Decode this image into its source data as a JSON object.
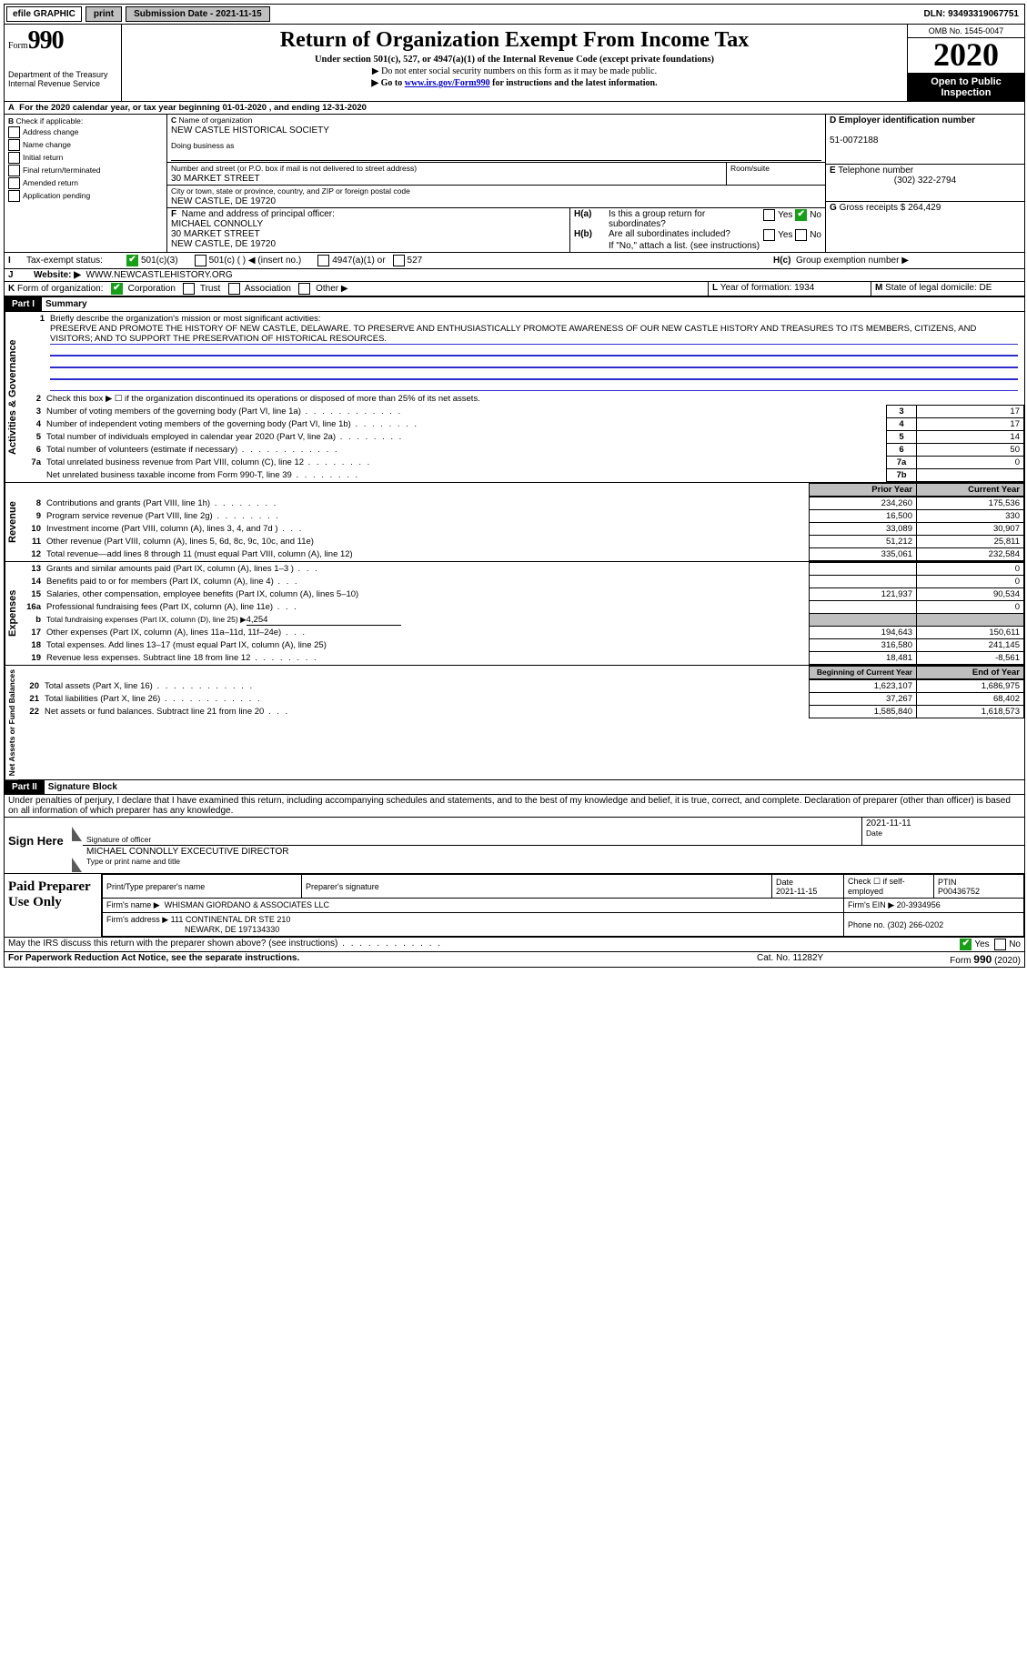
{
  "colors": {
    "blue": "#2d2dcc",
    "grey": "#bfbfbf",
    "green": "#17a017",
    "black": "#000000"
  },
  "fonts": {
    "body": "Arial, Helvetica, sans-serif",
    "serif": "Times New Roman, serif",
    "base_pt": 10
  },
  "topbar": {
    "efile": "efile GRAPHIC",
    "print": "print",
    "sub_date_lbl": "Submission Date - 2021-11-15",
    "dln": "DLN: 93493319067751"
  },
  "header": {
    "form_word": "Form",
    "form_num": "990",
    "dept": "Department of the Treasury",
    "irs": "Internal Revenue Service",
    "title": "Return of Organization Exempt From Income Tax",
    "subtitle": "Under section 501(c), 527, or 4947(a)(1) of the Internal Revenue Code (except private foundations)",
    "note1": "▶ Do not enter social security numbers on this form as it may be made public.",
    "note2_pre": "▶ Go to ",
    "note2_link": "www.irs.gov/Form990",
    "note2_post": " for instructions and the latest information.",
    "omb": "OMB No. 1545-0047",
    "year": "2020",
    "open": "Open to Public Inspection"
  },
  "period": {
    "line_a": "For the 2020 calendar year, or tax year beginning 01-01-2020    , and ending 12-31-2020",
    "a_lbl": "A"
  },
  "boxB": {
    "lbl": "B",
    "intro": "Check if applicable:",
    "o1": "Address change",
    "o2": "Name change",
    "o3": "Initial return",
    "o4": "Final return/terminated",
    "o5": "Amended return",
    "o6": "Application pending"
  },
  "boxC": {
    "lbl": "C",
    "name_lbl": "Name of organization",
    "name": "NEW CASTLE HISTORICAL SOCIETY",
    "dba_lbl": "Doing business as",
    "addr_lbl": "Number and street (or P.O. box if mail is not delivered to street address)",
    "room_lbl": "Room/suite",
    "addr": "30 MARKET STREET",
    "city_lbl": "City or town, state or province, country, and ZIP or foreign postal code",
    "city": "NEW CASTLE, DE  19720"
  },
  "boxD": {
    "lbl": "D",
    "title": "Employer identification number",
    "val": "51-0072188"
  },
  "boxE": {
    "lbl": "E",
    "title": "Telephone number",
    "val": "(302) 322-2794"
  },
  "boxG": {
    "lbl": "G",
    "title": "Gross receipts $",
    "val": "264,429"
  },
  "boxF": {
    "lbl": "F",
    "title": "Name and address of principal officer:",
    "l1": "MICHAEL CONNOLLY",
    "l2": "30 MARKET STREET",
    "l3": "NEW CASTLE, DE  19720"
  },
  "boxH": {
    "a_lbl": "H(a)",
    "a_txt": "Is this a group return for subordinates?",
    "b_lbl": "H(b)",
    "b_txt": "Are all subordinates included?",
    "b_note": "If \"No,\" attach a list. (see instructions)",
    "c_lbl": "H(c)",
    "c_txt": "Group exemption number ▶",
    "yes": "Yes",
    "no": "No"
  },
  "taxstatus": {
    "i_lbl": "I",
    "title": "Tax-exempt status:",
    "o1": "501(c)(3)",
    "o2": "501(c) (  ) ◀ (insert no.)",
    "o3": "4947(a)(1) or",
    "o4": "527"
  },
  "website": {
    "j_lbl": "J",
    "title": "Website: ▶",
    "val": "WWW.NEWCASTLEHISTORY.ORG"
  },
  "boxK": {
    "lbl": "K",
    "title": "Form of organization:",
    "o1": "Corporation",
    "o2": "Trust",
    "o3": "Association",
    "o4": "Other ▶"
  },
  "boxL": {
    "lbl": "L",
    "title": "Year of formation:",
    "val": "1934"
  },
  "boxM": {
    "lbl": "M",
    "title": "State of legal domicile:",
    "val": "DE"
  },
  "part1": {
    "hdr": "Part I",
    "title": "Summary",
    "l1_lbl": "1",
    "l1_txt": "Briefly describe the organization's mission or most significant activities:",
    "mission": "PRESERVE AND PROMOTE THE HISTORY OF NEW CASTLE, DELAWARE. TO PRESERVE AND ENTHUSIASTICALLY PROMOTE AWARENESS OF OUR NEW CASTLE HISTORY AND TREASURES TO ITS MEMBERS, CITIZENS, AND VISITORS; AND TO SUPPORT THE PRESERVATION OF HISTORICAL RESOURCES.",
    "l2_lbl": "2",
    "l2_txt": "Check this box ▶ ☐ if the organization discontinued its operations or disposed of more than 25% of its net assets.",
    "gov_tab": "Activities & Governance",
    "rows_gov": [
      {
        "n": "3",
        "txt": "Number of voting members of the governing body (Part VI, line 1a)",
        "box": "3",
        "val": "17",
        "lead": "dotlead"
      },
      {
        "n": "4",
        "txt": "Number of independent voting members of the governing body (Part VI, line 1b)",
        "box": "4",
        "val": "17",
        "lead": "dotlead-s"
      },
      {
        "n": "5",
        "txt": "Total number of individuals employed in calendar year 2020 (Part V, line 2a)",
        "box": "5",
        "val": "14",
        "lead": "dotlead-s"
      },
      {
        "n": "6",
        "txt": "Total number of volunteers (estimate if necessary)",
        "box": "6",
        "val": "50",
        "lead": "dotlead"
      },
      {
        "n": "7a",
        "txt": "Total unrelated business revenue from Part VIII, column (C), line 12",
        "box": "7a",
        "val": "0",
        "lead": "dotlead-s"
      },
      {
        "n": "",
        "txt": "Net unrelated business taxable income from Form 990-T, line 39",
        "box": "7b",
        "val": "",
        "lead": "dotlead-s"
      }
    ],
    "rev_tab": "Revenue",
    "col_py": "Prior Year",
    "col_cy": "Current Year",
    "rows_rev": [
      {
        "n": "8",
        "txt": "Contributions and grants (Part VIII, line 1h)",
        "py": "234,260",
        "cy": "175,536",
        "lead": "dotlead-s"
      },
      {
        "n": "9",
        "txt": "Program service revenue (Part VIII, line 2g)",
        "py": "16,500",
        "cy": "330",
        "lead": "dotlead-s"
      },
      {
        "n": "10",
        "txt": "Investment income (Part VIII, column (A), lines 3, 4, and 7d )",
        "py": "33,089",
        "cy": "30,907",
        "lead": "dotlead-xs"
      },
      {
        "n": "11",
        "txt": "Other revenue (Part VIII, column (A), lines 5, 6d, 8c, 9c, 10c, and 11e)",
        "py": "51,212",
        "cy": "25,811",
        "lead": ""
      },
      {
        "n": "12",
        "txt": "Total revenue—add lines 8 through 11 (must equal Part VIII, column (A), line 12)",
        "py": "335,061",
        "cy": "232,584",
        "lead": ""
      }
    ],
    "exp_tab": "Expenses",
    "rows_exp": [
      {
        "n": "13",
        "txt": "Grants and similar amounts paid (Part IX, column (A), lines 1–3 )",
        "py": "",
        "cy": "0",
        "lead": "dotlead-xs"
      },
      {
        "n": "14",
        "txt": "Benefits paid to or for members (Part IX, column (A), line 4)",
        "py": "",
        "cy": "0",
        "lead": "dotlead-xs"
      },
      {
        "n": "15",
        "txt": "Salaries, other compensation, employee benefits (Part IX, column (A), lines 5–10)",
        "py": "121,937",
        "cy": "90,534",
        "lead": ""
      },
      {
        "n": "16a",
        "txt": "Professional fundraising fees (Part IX, column (A), line 11e)",
        "py": "",
        "cy": "0",
        "lead": "dotlead-xs"
      },
      {
        "n": "b",
        "txt_pre": "Total fundraising expenses (Part IX, column (D), line 25) ▶",
        "txt_val": "4,254",
        "py": "shade",
        "cy": "shade",
        "lead": ""
      },
      {
        "n": "17",
        "txt": "Other expenses (Part IX, column (A), lines 11a–11d, 11f–24e)",
        "py": "194,643",
        "cy": "150,611",
        "lead": "dotlead-xs"
      },
      {
        "n": "18",
        "txt": "Total expenses. Add lines 13–17 (must equal Part IX, column (A), line 25)",
        "py": "316,580",
        "cy": "241,145",
        "lead": ""
      },
      {
        "n": "19",
        "txt": "Revenue less expenses. Subtract line 18 from line 12",
        "py": "18,481",
        "cy": "-8,561",
        "lead": "dotlead-s"
      }
    ],
    "net_tab": "Net Assets or Fund Balances",
    "col_beg": "Beginning of Current Year",
    "col_end": "End of Year",
    "rows_net": [
      {
        "n": "20",
        "txt": "Total assets (Part X, line 16)",
        "py": "1,623,107",
        "cy": "1,686,975",
        "lead": "dotlead"
      },
      {
        "n": "21",
        "txt": "Total liabilities (Part X, line 26)",
        "py": "37,267",
        "cy": "68,402",
        "lead": "dotlead"
      },
      {
        "n": "22",
        "txt": "Net assets or fund balances. Subtract line 21 from line 20",
        "py": "1,585,840",
        "cy": "1,618,573",
        "lead": "dotlead-xs"
      }
    ],
    "net_b_lbl": "b"
  },
  "part2": {
    "hdr": "Part II",
    "title": "Signature Block",
    "decl": "Under penalties of perjury, I declare that I have examined this return, including accompanying schedules and statements, and to the best of my knowledge and belief, it is true, correct, and complete. Declaration of preparer (other than officer) is based on all information of which preparer has any knowledge.",
    "sign_here": "Sign Here",
    "sig_officer": "Signature of officer",
    "sig_date": "2021-11-11",
    "date_lbl": "Date",
    "officer_name": "MICHAEL CONNOLLY  EXCECUTIVE DIRECTOR",
    "type_name": "Type or print name and title",
    "paid": "Paid Preparer Use Only",
    "prep_name_lbl": "Print/Type preparer's name",
    "prep_sig_lbl": "Preparer's signature",
    "prep_date_lbl": "Date",
    "prep_date": "2021-11-15",
    "self_emp": "Check ☐ if self-employed",
    "ptin_lbl": "PTIN",
    "ptin": "P00436752",
    "firm_name_lbl": "Firm's name    ▶",
    "firm_name": "WHISMAN GIORDANO & ASSOCIATES LLC",
    "firm_ein_lbl": "Firm's EIN ▶",
    "firm_ein": "20-3934956",
    "firm_addr_lbl": "Firm's address ▶",
    "firm_addr1": "111 CONTINENTAL DR STE 210",
    "firm_addr2": "NEWARK, DE  197134330",
    "firm_phone_lbl": "Phone no.",
    "firm_phone": "(302) 266-0202",
    "discuss": "May the IRS discuss this return with the preparer shown above? (see instructions)",
    "yes": "Yes",
    "no": "No"
  },
  "footer": {
    "left": "For Paperwork Reduction Act Notice, see the separate instructions.",
    "mid": "Cat. No. 11282Y",
    "right": "Form 990 (2020)",
    "right_bold": "990"
  }
}
